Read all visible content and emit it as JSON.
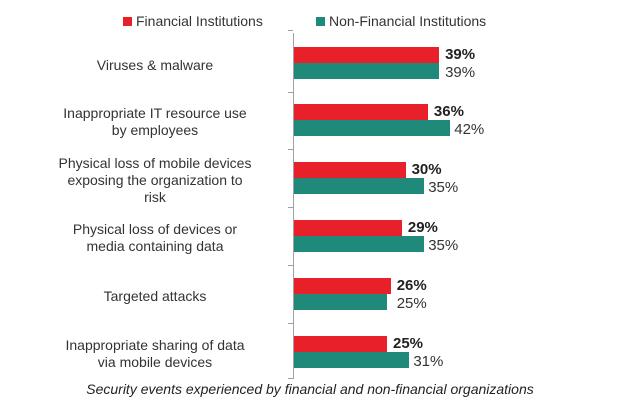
{
  "chart_data": {
    "type": "bar",
    "orientation": "horizontal",
    "title": "",
    "caption": "Security events experienced by financial and non-financial organizations",
    "xlabel": "",
    "ylabel": "",
    "grid": false,
    "legend_position": "top",
    "categories": [
      "Viruses & malware",
      "Inappropriate IT resource use by employees",
      "Physical loss of mobile devices exposing the organization to risk",
      "Physical loss of devices or media containing data",
      "Targeted attacks",
      "Inappropriate sharing of data via mobile devices"
    ],
    "series": [
      {
        "name": "Financial Institutions",
        "color": "#e8202a",
        "values": [
          39,
          36,
          30,
          29,
          26,
          25
        ]
      },
      {
        "name": "Non-Financial Institutions",
        "color": "#1f8a7a",
        "values": [
          39,
          42,
          35,
          35,
          25,
          31
        ]
      }
    ],
    "unit": "%"
  },
  "legend": {
    "items": [
      {
        "label": "Financial Institutions",
        "color": "#e8202a"
      },
      {
        "label": "Non-Financial Institutions",
        "color": "#1f8a7a"
      }
    ]
  },
  "rows": [
    {
      "label_lines": [
        "Viruses & malware"
      ],
      "fin": "39%",
      "non": "39%"
    },
    {
      "label_lines": [
        "Inappropriate IT resource use",
        "by employees"
      ],
      "fin": "36%",
      "non": "42%"
    },
    {
      "label_lines": [
        "Physical loss of mobile devices",
        "exposing the organization to",
        "risk"
      ],
      "fin": "30%",
      "non": "35%"
    },
    {
      "label_lines": [
        "Physical loss of devices or",
        "media containing data"
      ],
      "fin": "29%",
      "non": "35%"
    },
    {
      "label_lines": [
        "Targeted attacks"
      ],
      "fin": "26%",
      "non": "25%"
    },
    {
      "label_lines": [
        "Inappropriate sharing of data",
        "via mobile devices"
      ],
      "fin": "25%",
      "non": "31%"
    }
  ],
  "caption": "Security events experienced by financial and non-financial organizations"
}
